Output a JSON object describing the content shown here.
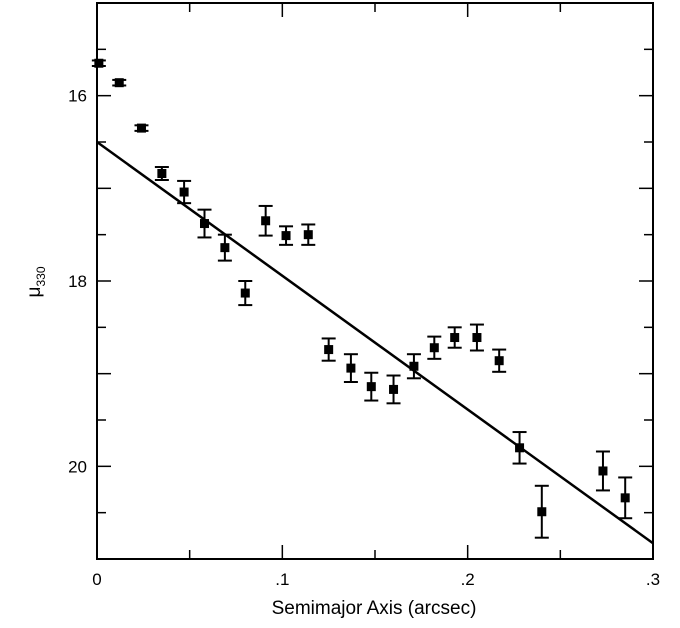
{
  "chart_data": {
    "type": "scatter",
    "title": "",
    "xlabel": "Semimajor Axis (arcsec)",
    "ylabel": {
      "main": "μ",
      "sub": "330"
    },
    "xlim": [
      0,
      0.3
    ],
    "ylim": [
      21,
      15
    ],
    "y_inverted": true,
    "grid": false,
    "x_ticks": [
      {
        "value": 0,
        "label": "0"
      },
      {
        "value": 0.1,
        "label": ".1"
      },
      {
        "value": 0.2,
        "label": ".2"
      },
      {
        "value": 0.3,
        "label": ".3"
      }
    ],
    "y_ticks": [
      {
        "value": 16,
        "label": "16"
      },
      {
        "value": 18,
        "label": "18"
      },
      {
        "value": 20,
        "label": "20"
      }
    ],
    "points": [
      {
        "x": 0.001,
        "y": 15.65,
        "err": 0.03
      },
      {
        "x": 0.012,
        "y": 15.86,
        "err": 0.03
      },
      {
        "x": 0.024,
        "y": 16.35,
        "err": 0.03
      },
      {
        "x": 0.035,
        "y": 16.84,
        "err": 0.07
      },
      {
        "x": 0.047,
        "y": 17.04,
        "err": 0.12
      },
      {
        "x": 0.058,
        "y": 17.38,
        "err": 0.15
      },
      {
        "x": 0.069,
        "y": 17.64,
        "err": 0.14
      },
      {
        "x": 0.08,
        "y": 18.13,
        "err": 0.13
      },
      {
        "x": 0.091,
        "y": 17.35,
        "err": 0.16
      },
      {
        "x": 0.102,
        "y": 17.51,
        "err": 0.1
      },
      {
        "x": 0.114,
        "y": 17.5,
        "err": 0.11
      },
      {
        "x": 0.125,
        "y": 18.74,
        "err": 0.12
      },
      {
        "x": 0.137,
        "y": 18.94,
        "err": 0.15
      },
      {
        "x": 0.148,
        "y": 19.14,
        "err": 0.15
      },
      {
        "x": 0.16,
        "y": 19.17,
        "err": 0.15
      },
      {
        "x": 0.171,
        "y": 18.92,
        "err": 0.13
      },
      {
        "x": 0.182,
        "y": 18.72,
        "err": 0.12
      },
      {
        "x": 0.193,
        "y": 18.61,
        "err": 0.11
      },
      {
        "x": 0.205,
        "y": 18.61,
        "err": 0.14
      },
      {
        "x": 0.217,
        "y": 18.86,
        "err": 0.12
      },
      {
        "x": 0.228,
        "y": 19.8,
        "err": 0.17
      },
      {
        "x": 0.24,
        "y": 20.49,
        "err": 0.28
      },
      {
        "x": 0.273,
        "y": 20.05,
        "err": 0.21
      },
      {
        "x": 0.285,
        "y": 20.34,
        "err": 0.22
      }
    ],
    "fit_line": {
      "x": [
        0,
        0.3
      ],
      "y": [
        16.5,
        20.83
      ]
    }
  }
}
